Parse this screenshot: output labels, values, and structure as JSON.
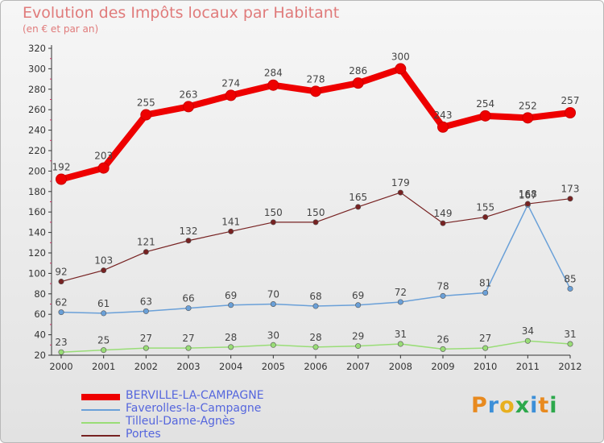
{
  "chart_data": {
    "type": "line",
    "title": "Evolution des Impôts locaux par Habitant",
    "subtitle": "(en € et par an)",
    "x": [
      "2000",
      "2001",
      "2002",
      "2003",
      "2004",
      "2005",
      "2006",
      "2007",
      "2008",
      "2009",
      "2010",
      "2011",
      "2012"
    ],
    "ylim": [
      20,
      320
    ],
    "yticks": [
      20,
      40,
      60,
      80,
      100,
      120,
      140,
      160,
      180,
      200,
      220,
      240,
      260,
      280,
      300,
      320
    ],
    "grid": false,
    "legend_position": "bottom-left",
    "series": [
      {
        "name": "BERVILLE-LA-CAMPAGNE",
        "color": "#ee0000",
        "values": [
          192,
          203,
          255,
          263,
          274,
          284,
          278,
          286,
          300,
          243,
          254,
          252,
          257
        ],
        "labels": [
          "192",
          "203",
          "255",
          "263",
          "274",
          "284",
          "278",
          "286",
          "300",
          "243",
          "254",
          "252",
          "257"
        ]
      },
      {
        "name": "Faverolles-la-Campagne",
        "color": "#6aa0d8",
        "values": [
          62,
          61,
          63,
          66,
          69,
          70,
          68,
          69,
          72,
          78,
          81,
          167,
          85
        ],
        "labels": [
          "62",
          "61",
          "63",
          "66",
          "69",
          "70",
          "68",
          "69",
          "72",
          "78",
          "81",
          "167",
          "85"
        ]
      },
      {
        "name": "Tilleul-Dame-Agnès",
        "color": "#99dd77",
        "values": [
          23,
          25,
          27,
          27,
          28,
          30,
          28,
          29,
          31,
          26,
          27,
          34,
          31
        ],
        "labels": [
          "23",
          "25",
          "27",
          "27",
          "28",
          "30",
          "28",
          "29",
          "31",
          "26",
          "27",
          "34",
          "31"
        ]
      },
      {
        "name": "Portes",
        "color": "#772222",
        "values": [
          92,
          103,
          121,
          132,
          141,
          150,
          150,
          165,
          179,
          149,
          155,
          168,
          173
        ],
        "labels": [
          "92",
          "103",
          "121",
          "132",
          "141",
          "150",
          "150",
          "165",
          "179",
          "149",
          "155",
          "168",
          "173"
        ]
      }
    ]
  },
  "logo": {
    "text": "Proxiti"
  }
}
